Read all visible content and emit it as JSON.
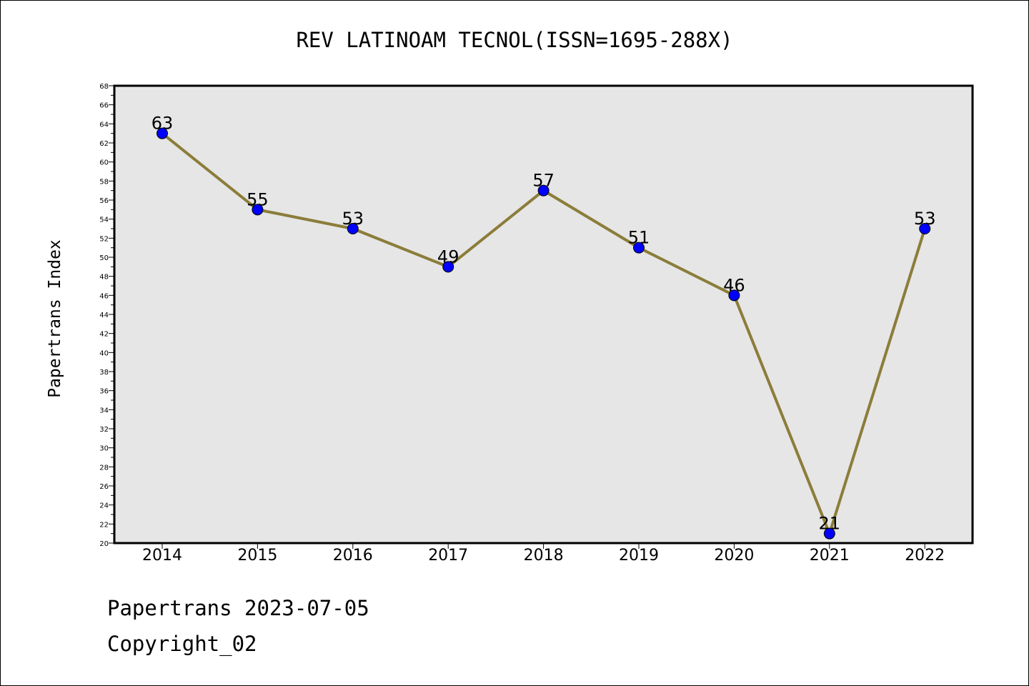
{
  "chart_data": {
    "type": "line",
    "title": "REV LATINOAM TECNOL(ISSN=1695-288X)",
    "xlabel": "",
    "ylabel": "Papertrans Index",
    "categories": [
      "2014",
      "2015",
      "2016",
      "2017",
      "2018",
      "2019",
      "2020",
      "2021",
      "2022"
    ],
    "series": [
      {
        "values": [
          63,
          55,
          53,
          49,
          57,
          51,
          46,
          21,
          53
        ]
      }
    ],
    "ylim": [
      20,
      68
    ],
    "yticks": [
      20,
      22,
      24,
      26,
      28,
      30,
      32,
      34,
      36,
      38,
      40,
      42,
      44,
      46,
      48,
      50,
      52,
      54,
      56,
      58,
      60,
      62,
      64,
      66,
      68
    ],
    "grid": false,
    "legend": "none",
    "colors": {
      "line": "#8b7d3a",
      "marker": "#0000ff",
      "plot_background": "#e6e6e6"
    }
  },
  "footer": {
    "line1": "Papertrans 2023-07-05",
    "line2": "Copyright_02"
  }
}
